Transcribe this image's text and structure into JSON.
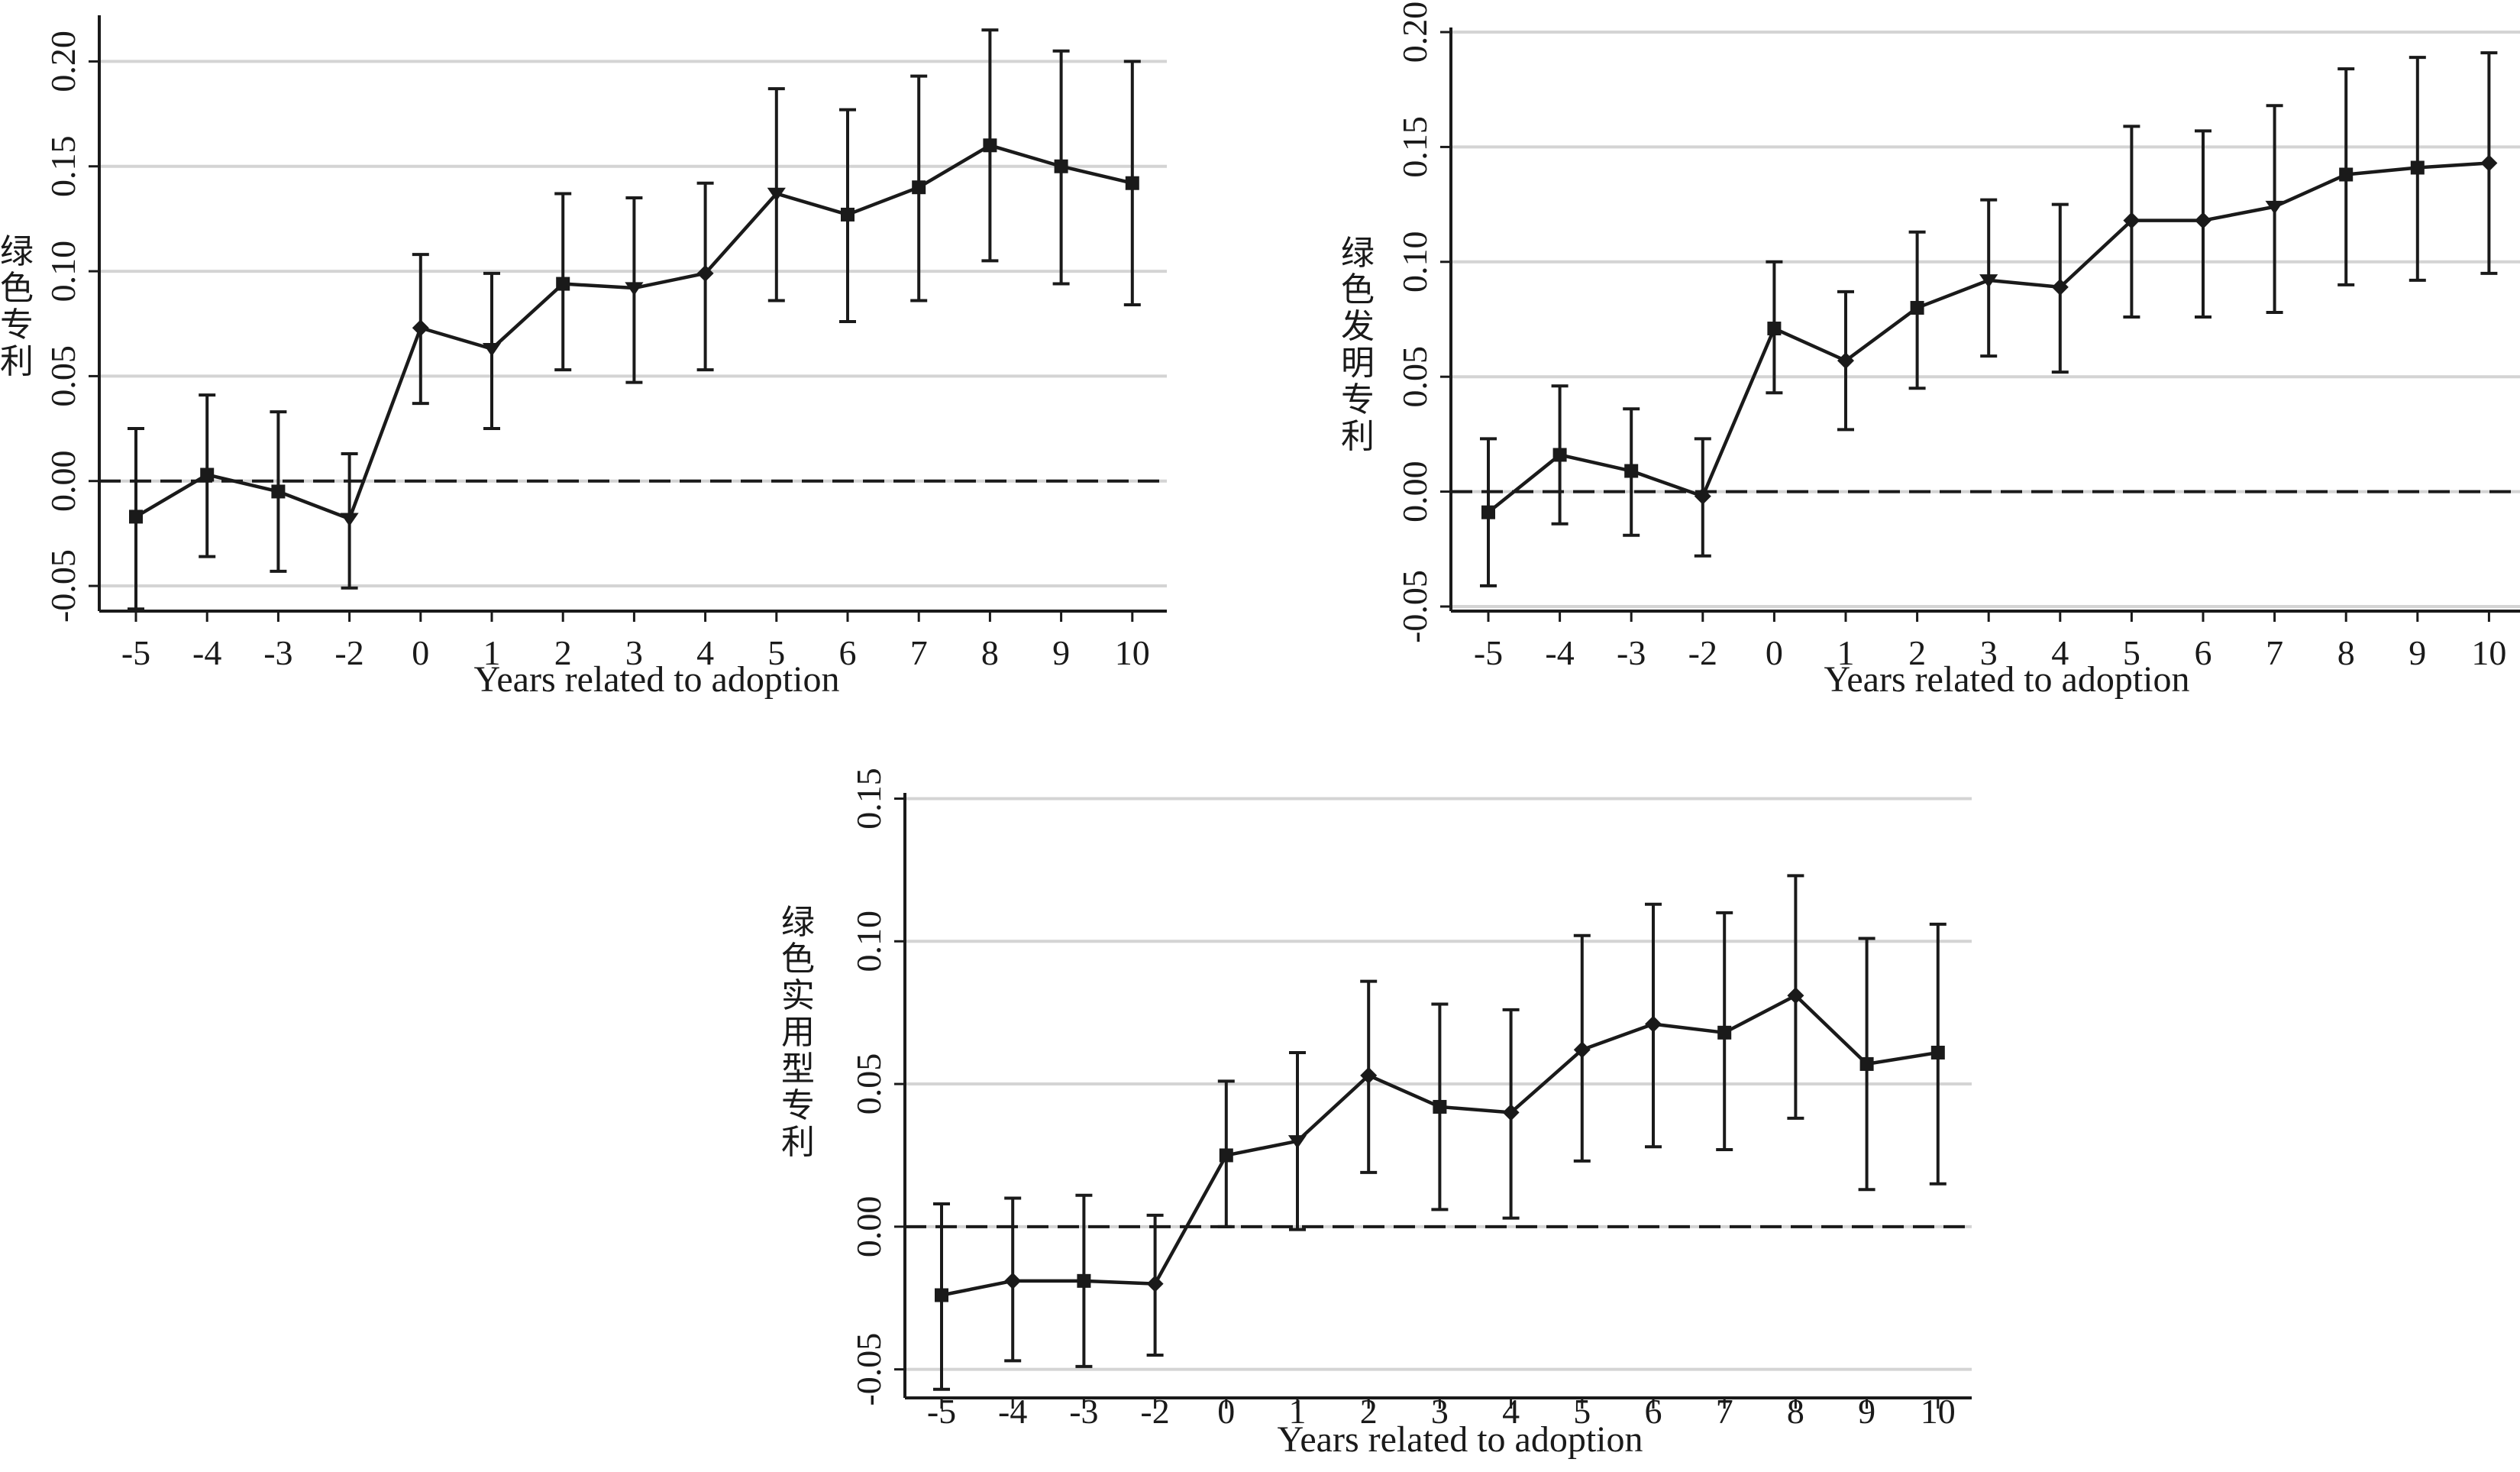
{
  "chart_data": [
    {
      "type": "line",
      "ylabel": "绿色专利",
      "xlabel": "Years related to adoption",
      "categories": [
        "-5",
        "-4",
        "-3",
        "-2",
        "0",
        "1",
        "2",
        "3",
        "4",
        "5",
        "6",
        "7",
        "8",
        "9",
        "10"
      ],
      "yticks": [
        "-0.05",
        "0.00",
        "0.05",
        "0.10",
        "0.15",
        "0.20"
      ],
      "ylim": [
        -0.062,
        0.222
      ],
      "grid": true,
      "reference_line": 0,
      "series": [
        {
          "values": [
            -0.017,
            0.003,
            -0.005,
            -0.018,
            0.073,
            0.063,
            0.094,
            0.092,
            0.099,
            0.137,
            0.127,
            0.14,
            0.16,
            0.15,
            0.142
          ],
          "ci_low": [
            -0.061,
            -0.036,
            -0.043,
            -0.051,
            0.037,
            0.025,
            0.053,
            0.047,
            0.053,
            0.086,
            0.076,
            0.086,
            0.105,
            0.094,
            0.084
          ],
          "ci_high": [
            0.025,
            0.041,
            0.033,
            0.013,
            0.108,
            0.099,
            0.137,
            0.135,
            0.142,
            0.187,
            0.177,
            0.193,
            0.215,
            0.205,
            0.2
          ]
        }
      ]
    },
    {
      "type": "line",
      "ylabel": "绿色发明专利",
      "xlabel": "Years related to adoption",
      "categories": [
        "-5",
        "-4",
        "-3",
        "-2",
        "0",
        "1",
        "2",
        "3",
        "4",
        "5",
        "6",
        "7",
        "8",
        "9",
        "10"
      ],
      "yticks": [
        "-0.05",
        "0.00",
        "0.05",
        "0.10",
        "0.15",
        "0.20"
      ],
      "ylim": [
        -0.052,
        0.202
      ],
      "grid": true,
      "reference_line": 0,
      "series": [
        {
          "values": [
            -0.009,
            0.016,
            0.009,
            -0.002,
            0.071,
            0.057,
            0.08,
            0.092,
            0.089,
            0.118,
            0.118,
            0.124,
            0.138,
            0.141,
            0.143
          ],
          "ci_low": [
            -0.041,
            -0.014,
            -0.019,
            -0.028,
            0.043,
            0.027,
            0.045,
            0.059,
            0.052,
            0.076,
            0.076,
            0.078,
            0.09,
            0.092,
            0.095
          ],
          "ci_high": [
            0.023,
            0.046,
            0.036,
            0.023,
            0.1,
            0.087,
            0.113,
            0.127,
            0.125,
            0.159,
            0.157,
            0.168,
            0.184,
            0.189,
            0.191
          ]
        }
      ]
    },
    {
      "type": "line",
      "ylabel": "绿色实用型专利",
      "xlabel": "Years related to adoption",
      "categories": [
        "-5",
        "-4",
        "-3",
        "-2",
        "0",
        "1",
        "2",
        "3",
        "4",
        "5",
        "6",
        "7",
        "8",
        "9",
        "10"
      ],
      "yticks": [
        "-0.05",
        "0.00",
        "0.05",
        "0.10",
        "0.15"
      ],
      "ylim": [
        -0.06,
        0.152
      ],
      "grid": true,
      "reference_line": 0,
      "series": [
        {
          "values": [
            -0.024,
            -0.019,
            -0.019,
            -0.02,
            0.025,
            0.03,
            0.053,
            0.042,
            0.04,
            0.062,
            0.071,
            0.068,
            0.081,
            0.057,
            0.061
          ],
          "ci_low": [
            -0.057,
            -0.047,
            -0.049,
            -0.045,
            0.0,
            -0.001,
            0.019,
            0.006,
            0.003,
            0.023,
            0.028,
            0.027,
            0.038,
            0.013,
            0.015
          ],
          "ci_high": [
            0.008,
            0.01,
            0.011,
            0.004,
            0.051,
            0.061,
            0.086,
            0.078,
            0.076,
            0.102,
            0.113,
            0.11,
            0.123,
            0.101,
            0.106
          ]
        }
      ]
    }
  ]
}
